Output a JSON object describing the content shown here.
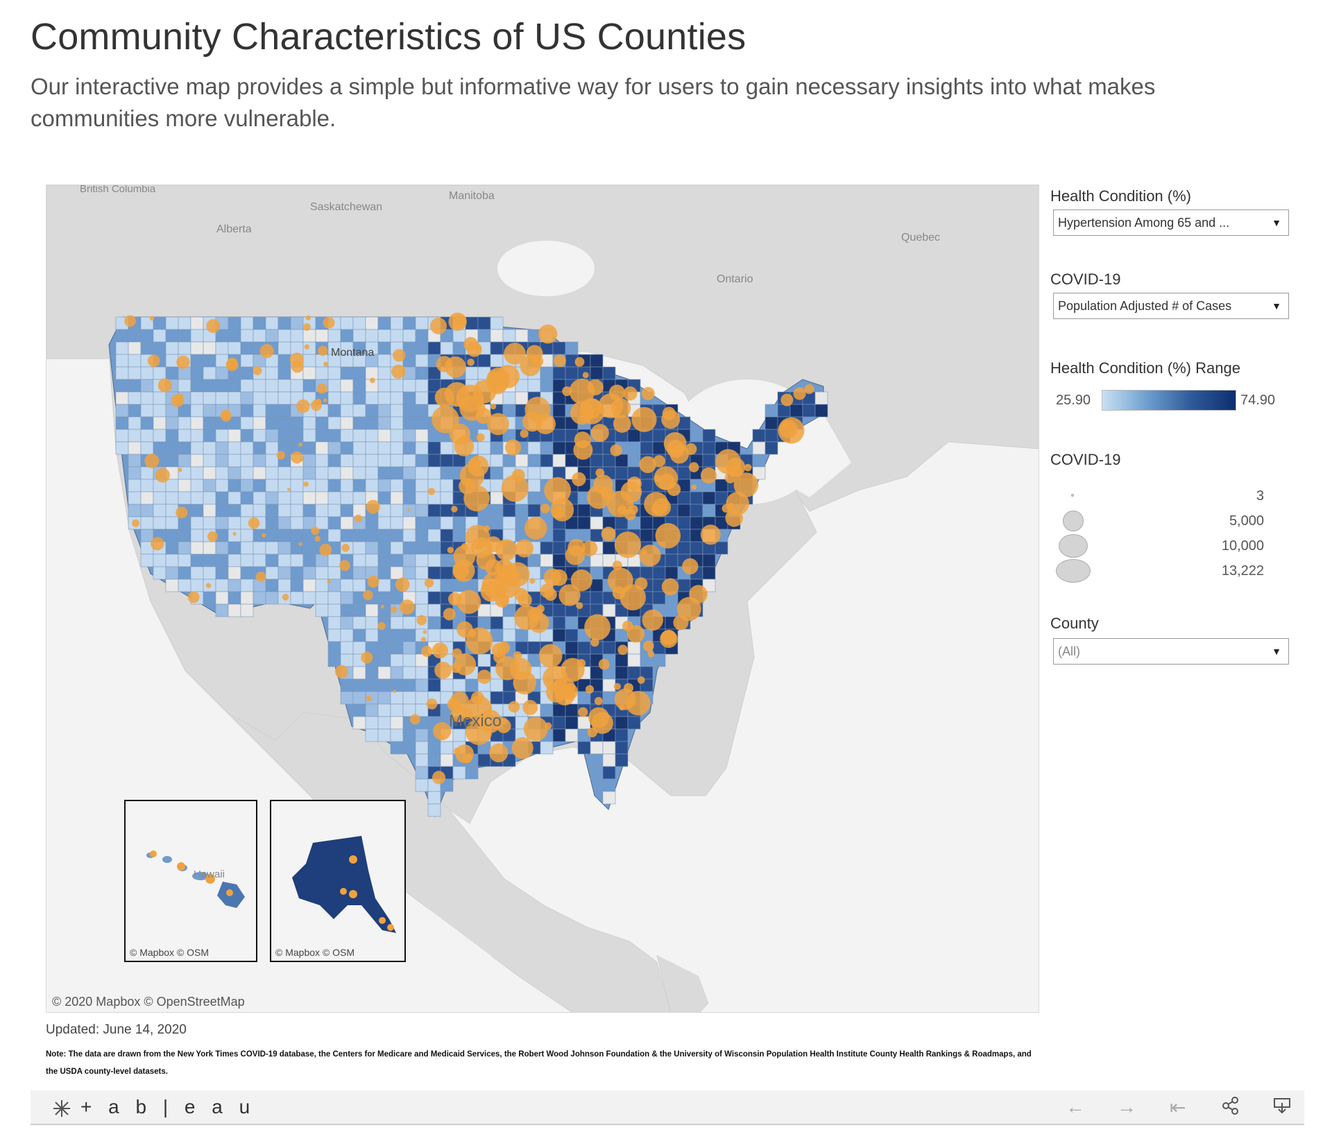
{
  "page": {
    "title": "Community Characteristics of US Counties",
    "subtitle": "Our interactive map provides a simple but informative way for users to gain necessary insights into what makes communities more vulnerable."
  },
  "map": {
    "place_labels": {
      "british_columbia": "British Columbia",
      "alberta": "Alberta",
      "saskatchewan": "Saskatchewan",
      "manitoba": "Manitoba",
      "quebec": "Quebec",
      "ontario": "Ontario",
      "montana": "Montana",
      "mexico": "Mexico",
      "hawaii": "Hawaii"
    },
    "attribution": "© 2020 Mapbox © OpenStreetMap",
    "inset_attribution": "© Mapbox © OSM",
    "colors": {
      "land": "#dadada",
      "water": "#f3f3f3",
      "county_light": "#c4daf0",
      "county_mid": "#6f9bce",
      "county_dark": "#2a4f8f",
      "county_darkest": "#18356f",
      "covid_marker": "#f0a240"
    }
  },
  "controls": {
    "health_condition": {
      "label": "Health Condition (%)",
      "selected": "Hypertension Among 65 and ..."
    },
    "covid": {
      "label": "COVID-19",
      "selected": "Population Adjusted # of Cases"
    },
    "range": {
      "label": "Health Condition (%) Range",
      "min": "25.90",
      "max": "74.90"
    },
    "size_legend": {
      "label": "COVID-19",
      "items": [
        "3",
        "5,000",
        "10,000",
        "13,222"
      ]
    },
    "county": {
      "label": "County",
      "selected": "(All)"
    }
  },
  "meta": {
    "updated": "Updated: June 14, 2020",
    "note": "Note: The data are drawn from the New York Times COVID-19 database, the Centers for Medicare and Medicaid Services, the Robert Wood Johnson Foundation & the University of Wisconsin Population Health Institute County Health Rankings & Roadmaps, and the USDA county-level datasets."
  },
  "footer": {
    "brand": "+ a b | e a u",
    "icons": [
      "undo-icon",
      "redo-icon",
      "revert-icon",
      "share-icon",
      "download-icon"
    ]
  }
}
